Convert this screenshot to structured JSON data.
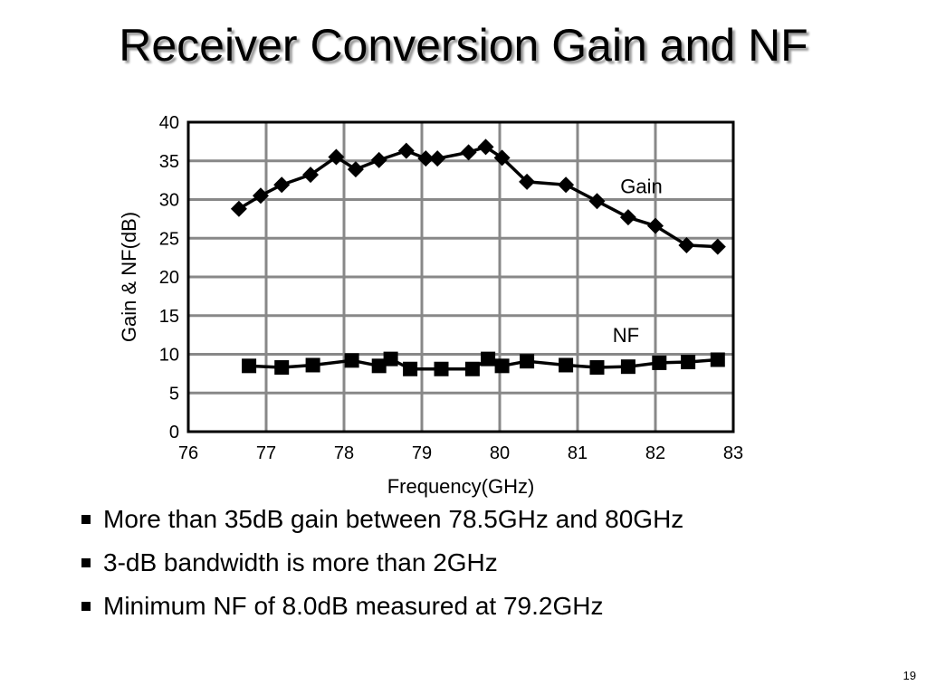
{
  "slide": {
    "title": "Receiver Conversion Gain and NF",
    "page_number": "19",
    "bullets": [
      "More than 35dB gain between 78.5GHz and 80GHz",
      "3-dB bandwidth is more than 2GHz",
      "Minimum NF of 8.0dB measured at 79.2GHz"
    ]
  },
  "chart_data": {
    "type": "line",
    "xlabel": "Frequency(GHz)",
    "ylabel": "Gain & NF(dB)",
    "xlim": [
      76,
      83
    ],
    "ylim": [
      0,
      40
    ],
    "xticks": [
      "76",
      "77",
      "78",
      "79",
      "80",
      "81",
      "82",
      "83"
    ],
    "yticks": [
      "0",
      "5",
      "10",
      "15",
      "20",
      "25",
      "30",
      "35",
      "40"
    ],
    "grid": true,
    "series": [
      {
        "name": "Gain",
        "marker": "diamond",
        "color": "#000000",
        "x": [
          76.65,
          76.93,
          77.2,
          77.57,
          77.9,
          78.15,
          78.45,
          78.8,
          79.05,
          79.2,
          79.6,
          79.82,
          80.03,
          80.35,
          80.85,
          81.25,
          81.65,
          82.0,
          82.4,
          82.8
        ],
        "y": [
          28.8,
          30.5,
          31.9,
          33.2,
          35.5,
          33.9,
          35.1,
          36.3,
          35.3,
          35.3,
          36.1,
          36.8,
          35.4,
          32.3,
          31.9,
          29.8,
          27.7,
          26.6,
          24.1,
          23.9
        ]
      },
      {
        "name": "NF",
        "marker": "square",
        "color": "#000000",
        "x": [
          76.78,
          77.2,
          77.6,
          78.1,
          78.45,
          78.6,
          78.85,
          79.25,
          79.65,
          79.85,
          80.03,
          80.35,
          80.85,
          81.25,
          81.65,
          82.05,
          82.42,
          82.8
        ],
        "y": [
          8.5,
          8.3,
          8.6,
          9.2,
          8.5,
          9.4,
          8.1,
          8.1,
          8.1,
          9.4,
          8.5,
          9.1,
          8.6,
          8.3,
          8.4,
          8.9,
          9.0,
          9.3
        ]
      }
    ],
    "annotations": [
      "Gain",
      "NF"
    ]
  }
}
